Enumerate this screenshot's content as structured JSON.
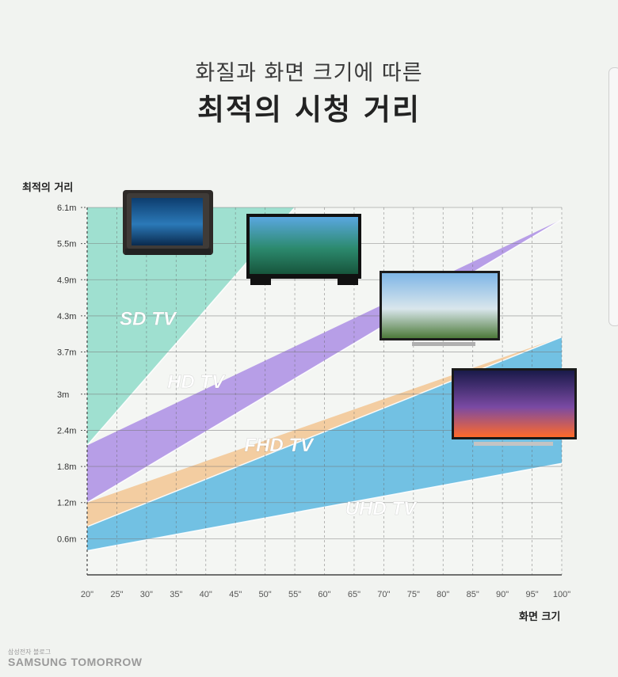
{
  "header": {
    "subtitle": "화질과 화면 크기에 따른",
    "title": "최적의 시청 거리"
  },
  "brand": {
    "small": "삼성전자 블로그",
    "name": "SAMSUNG TOMORROW"
  },
  "chart_data": {
    "type": "area",
    "title": "최적의 시청 거리",
    "subtitle": "화질과 화면 크기에 따른",
    "xlabel": "화면 크기",
    "ylabel": "최적의 거리",
    "x_ticks": [
      "20\"",
      "25\"",
      "30\"",
      "35\"",
      "40\"",
      "45\"",
      "50\"",
      "55\"",
      "60\"",
      "65\"",
      "70\"",
      "75\"",
      "80\"",
      "85\"",
      "90\"",
      "95\"",
      "100\""
    ],
    "y_ticks": [
      "0.6m",
      "1.2m",
      "1.8m",
      "2.4m",
      "3m",
      "3.7m",
      "4.3m",
      "4.9m",
      "5.5m",
      "6.1m"
    ],
    "xlim": [
      20,
      100
    ],
    "ylim": [
      0,
      6.1
    ],
    "grid": true,
    "series": [
      {
        "name": "SD TV",
        "color": "#8fdcc9",
        "x": [
          20,
          55,
          100
        ],
        "upper": [
          6.1,
          6.1,
          6.1
        ],
        "lower": [
          2.15,
          6.1,
          6.1
        ]
      },
      {
        "name": "HD TV",
        "color": "#ab8ee4",
        "x": [
          20,
          100
        ],
        "upper": [
          2.15,
          5.9
        ],
        "lower": [
          1.2,
          5.9
        ]
      },
      {
        "name": "FHD TV",
        "color": "#f2c592",
        "x": [
          20,
          100
        ],
        "upper": [
          1.2,
          3.95
        ],
        "lower": [
          0.8,
          3.95
        ]
      },
      {
        "name": "UHD TV",
        "color": "#5bb7df",
        "x": [
          20,
          100
        ],
        "upper": [
          0.8,
          3.95
        ],
        "lower": [
          0.4,
          1.85
        ]
      }
    ],
    "tv_images": [
      "SD TV",
      "HD TV",
      "FHD TV",
      "UHD TV"
    ]
  }
}
